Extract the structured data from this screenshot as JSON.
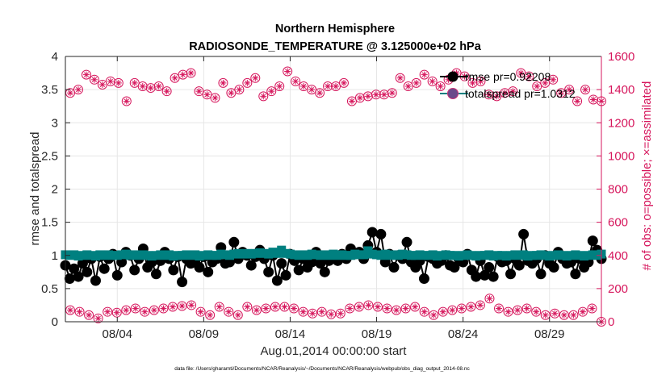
{
  "chart_data": {
    "type": "line",
    "title_line1": "Northern Hemisphere",
    "title_line2": "RADIOSONDE_TEMPERATURE @ 3.125000e+02 hPa",
    "xlabel": "Aug.01,2014 00:00:00 start",
    "ylabel_left": "rmse and totalspread",
    "ylabel_right": "# of obs: o=possible; ×=assimilated",
    "footnote": "data file: /Users/gharamti/Documents/NCAR/Reanalysis/~/Documents/NCAR/Reanalysis/webpub/obs_diag_output_2014-08.nc",
    "x_start": 1.0,
    "x_step": 0.25,
    "x_range": [
      1.0,
      32.0
    ],
    "x_ticks": [
      {
        "value": 4,
        "label": "08/04"
      },
      {
        "value": 9,
        "label": "08/09"
      },
      {
        "value": 14,
        "label": "08/14"
      },
      {
        "value": 19,
        "label": "08/19"
      },
      {
        "value": 24,
        "label": "08/24"
      },
      {
        "value": 29,
        "label": "08/29"
      }
    ],
    "y_left_range": [
      0,
      4
    ],
    "y_left_ticks": [
      "0",
      "0.5",
      "1",
      "1.5",
      "2",
      "2.5",
      "3",
      "3.5",
      "4"
    ],
    "y_right_range": [
      0,
      1600
    ],
    "y_right_ticks": [
      "0",
      "200",
      "400",
      "600",
      "800",
      "1000",
      "1200",
      "1400",
      "1600"
    ],
    "grid": true,
    "legend_position": "top-right",
    "series": [
      {
        "name": "rmse",
        "legend": "rmse pr=0.92208",
        "axis": "left",
        "color": "#000000",
        "marker": "circle",
        "values": [
          0.85,
          0.65,
          0.8,
          0.68,
          0.88,
          0.75,
          0.95,
          0.62,
          0.98,
          0.8,
          0.95,
          1.02,
          0.7,
          0.9,
          1.05,
          1.0,
          0.78,
          0.95,
          1.1,
          0.82,
          0.9,
          0.72,
          0.92,
          1.05,
          0.95,
          0.78,
          0.98,
          0.6,
          0.95,
          0.88,
          0.92,
          0.82,
          0.98,
          0.75,
          0.9,
          0.95,
          1.12,
          0.88,
          0.9,
          1.2,
          0.95,
          1.05,
          1.0,
          0.85,
          0.98,
          1.08,
          0.95,
          0.75,
          1.0,
          0.62,
          0.88,
          0.7,
          1.02,
          0.92,
          0.78,
          0.95,
          0.82,
          0.9,
          1.05,
          0.88,
          0.75,
          0.92,
          1.0,
          0.92,
          1.02,
          0.95,
          1.1,
          1.02,
          1.05,
          0.95,
          1.15,
          1.35,
          1.05,
          1.32,
          0.9,
          1.02,
          0.82,
          1.0,
          0.95,
          1.2,
          0.9,
          0.82,
          0.92,
          0.65,
          0.98,
          0.95,
          0.88,
          0.92,
          1.0,
          0.85,
          0.82,
          0.95,
          0.9,
          1.02,
          0.78,
          0.68,
          0.92,
          0.7,
          0.82,
          0.68,
          0.98,
          0.9,
          0.92,
          0.72,
          0.95,
          0.85,
          1.32,
          0.92,
          0.88,
          0.95,
          0.72,
          1.0,
          0.88,
          0.82,
          1.05,
          0.95,
          0.88,
          0.9,
          0.72,
          0.95,
          0.82,
          0.9,
          1.22,
          1.08,
          0.95
        ]
      },
      {
        "name": "totalspread",
        "legend": "totalspread pr=1.0312",
        "axis": "left",
        "color": "#008080",
        "marker": "square",
        "values": [
          1.01,
          1.0,
          1.01,
          0.99,
          1.0,
          1.01,
          1.0,
          0.99,
          1.01,
          1.0,
          1.01,
          1.0,
          1.0,
          1.01,
          1.02,
          1.0,
          1.01,
          1.0,
          1.01,
          1.0,
          0.99,
          1.0,
          1.01,
          1.0,
          1.01,
          0.99,
          1.0,
          1.0,
          1.01,
          1.0,
          1.01,
          0.99,
          1.0,
          1.01,
          1.0,
          1.0,
          1.02,
          1.01,
          1.0,
          1.02,
          1.03,
          1.02,
          1.03,
          1.02,
          1.03,
          1.04,
          1.03,
          1.02,
          1.05,
          1.03,
          1.08,
          1.03,
          1.02,
          1.01,
          1.0,
          1.01,
          1.0,
          1.02,
          1.01,
          1.0,
          1.01,
          1.0,
          1.02,
          1.0,
          1.01,
          1.0,
          1.0,
          1.02,
          1.01,
          1.01,
          1.07,
          1.02,
          1.01,
          1.0,
          1.02,
          1.0,
          1.01,
          1.0,
          1.02,
          1.01,
          1.0,
          1.0,
          1.01,
          1.0,
          1.0,
          1.01,
          0.99,
          1.0,
          1.01,
          1.0,
          1.0,
          0.99,
          1.0,
          1.01,
          1.0,
          0.99,
          1.0,
          1.0,
          1.01,
          0.99,
          1.0,
          1.0,
          0.99,
          1.0,
          1.01,
          1.0,
          1.01,
          0.99,
          1.0,
          1.0,
          1.01,
          1.0,
          0.99,
          1.0,
          1.01,
          1.0,
          0.99,
          1.0,
          1.01,
          1.0,
          0.99,
          1.0,
          1.01,
          1.0,
          1.02
        ]
      },
      {
        "name": "obs_possible_high",
        "legend": "",
        "axis": "right",
        "color": "#d6165c",
        "marker": "circle-asterisk",
        "values": [
          1380,
          1400,
          1490,
          1460,
          1430,
          1450,
          1440,
          1330,
          1440,
          1420,
          1410,
          1420,
          1390,
          1470,
          1490,
          1500,
          1390,
          1370,
          1350,
          1440,
          1380,
          1400,
          1440,
          1470,
          1360,
          1390,
          1420,
          1510,
          1450,
          1420,
          1400,
          1380,
          1420,
          1420,
          1440,
          1330,
          1350,
          1360,
          1370,
          1370,
          1380,
          1470,
          1420,
          1440,
          1490,
          1450,
          1420,
          1460,
          1500,
          1480,
          1440,
          1450,
          1370,
          1360,
          1380,
          1390,
          1500,
          1480,
          1420,
          1440,
          1460,
          1380,
          1400,
          1330,
          1400,
          1340,
          1330
        ]
      },
      {
        "name": "obs_possible_low",
        "legend": "",
        "axis": "right",
        "color": "#d6165c",
        "marker": "circle-asterisk",
        "values": [
          70,
          60,
          40,
          20,
          60,
          55,
          70,
          80,
          60,
          70,
          80,
          90,
          95,
          100,
          60,
          40,
          90,
          60,
          40,
          90,
          70,
          80,
          90,
          90,
          80,
          60,
          50,
          60,
          45,
          50,
          80,
          90,
          100,
          90,
          80,
          70,
          80,
          90,
          60,
          40,
          60,
          70,
          80,
          90,
          100,
          140,
          80,
          60,
          70,
          80,
          60,
          40,
          50,
          40,
          40,
          60,
          80,
          0
        ]
      }
    ]
  }
}
